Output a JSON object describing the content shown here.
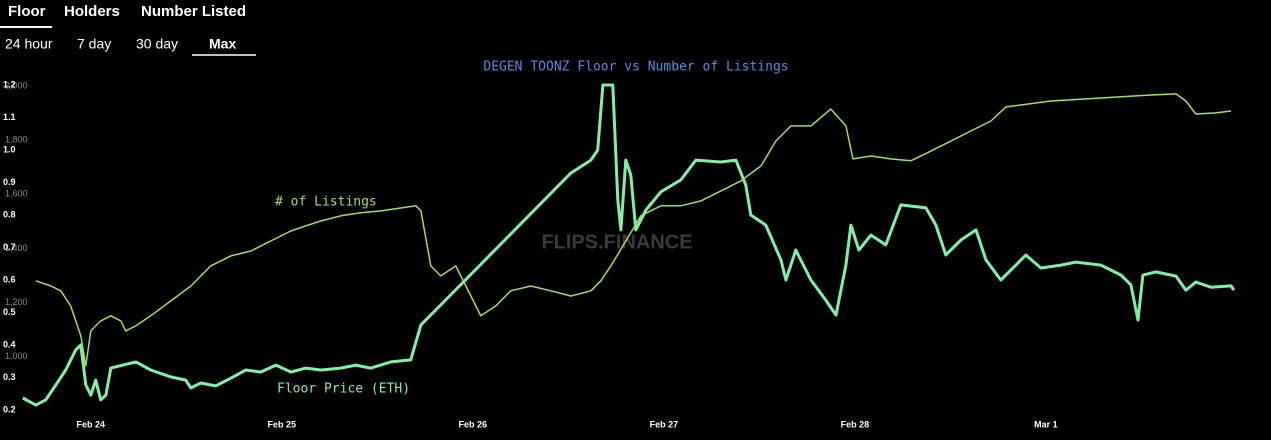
{
  "tabs": [
    "Floor",
    "Holders",
    "Number Listed"
  ],
  "ranges": [
    "24 hour",
    "7 day",
    "30 day",
    "Max"
  ],
  "chart_data": {
    "type": "line",
    "title": "DEGEN TOONZ Floor vs Number of Listings",
    "watermark": "FLIPS.FINANCE",
    "annotations": [
      "# of Listings",
      "Floor Price (ETH)"
    ],
    "xlim": [
      -0.36,
      5.99
    ],
    "xticks": [
      {
        "value": 0,
        "label": "Feb 24"
      },
      {
        "value": 1,
        "label": "Feb 25"
      },
      {
        "value": 2,
        "label": "Feb 26"
      },
      {
        "value": 3,
        "label": "Feb 27"
      },
      {
        "value": 4,
        "label": "Feb 28"
      },
      {
        "value": 5,
        "label": "Mar 1"
      }
    ],
    "ylim": [
      0.2,
      1.2
    ],
    "yticks": [
      0.2,
      0.3,
      0.4,
      0.5,
      0.6,
      0.7,
      0.8,
      0.9,
      {
        "value": 1,
        "label": "1.0"
      },
      1.1,
      1.2
    ],
    "y2lim": [
      800,
      2000
    ],
    "y2ticks": [
      {
        "value": 1000,
        "label": "1,000"
      },
      {
        "value": 1200,
        "label": "1,200"
      },
      {
        "value": 1400,
        "label": "1,400"
      },
      {
        "value": 1600,
        "label": "1,600"
      },
      {
        "value": 1800,
        "label": "1,800"
      },
      {
        "value": 2000,
        "label": "2,000"
      }
    ],
    "series": [
      {
        "name": "Floor Price (ETH)",
        "color": "#7ff0a6",
        "width": 3,
        "x": [
          -0.356,
          -0.288,
          -0.236,
          -0.183,
          -0.131,
          -0.079,
          -0.052,
          -0.026,
          0,
          0.026,
          0.052,
          0.079,
          0.105,
          0.236,
          0.314,
          0.419,
          0.497,
          0.524,
          0.576,
          0.654,
          0.733,
          0.812,
          0.89,
          0.969,
          1.047,
          1.126,
          1.204,
          1.309,
          1.387,
          1.466,
          1.571,
          1.675,
          1.728,
          1.832,
          2.513,
          2.618,
          2.654,
          2.681,
          2.733,
          2.759,
          2.775,
          2.801,
          2.827,
          2.853,
          2.906,
          2.984,
          3.089,
          3.168,
          3.298,
          3.377,
          3.429,
          3.455,
          3.534,
          3.613,
          3.639,
          3.691,
          3.77,
          3.848,
          3.901,
          3.953,
          3.979,
          4.021,
          4.084,
          4.162,
          4.241,
          4.372,
          4.424,
          4.476,
          4.555,
          4.634,
          4.686,
          4.764,
          4.843,
          4.895,
          4.974,
          5.079,
          5.157,
          5.288,
          5.393,
          5.445,
          5.482,
          5.508,
          5.576,
          5.681,
          5.733,
          5.785,
          5.864,
          5.969,
          5.984
        ],
        "values": [
          0.237,
          0.215,
          0.231,
          0.277,
          0.323,
          0.385,
          0.4,
          0.277,
          0.246,
          0.292,
          0.231,
          0.246,
          0.329,
          0.348,
          0.323,
          0.302,
          0.292,
          0.268,
          0.283,
          0.274,
          0.298,
          0.323,
          0.317,
          0.338,
          0.317,
          0.329,
          0.323,
          0.329,
          0.338,
          0.329,
          0.348,
          0.354,
          0.462,
          0.523,
          0.929,
          0.969,
          1.0,
          1.2,
          1.2,
          0.846,
          0.754,
          0.969,
          0.923,
          0.754,
          0.815,
          0.871,
          0.908,
          0.969,
          0.963,
          0.969,
          0.892,
          0.8,
          0.769,
          0.662,
          0.6,
          0.692,
          0.6,
          0.538,
          0.492,
          0.646,
          0.769,
          0.692,
          0.738,
          0.708,
          0.831,
          0.822,
          0.769,
          0.677,
          0.723,
          0.754,
          0.662,
          0.6,
          0.646,
          0.677,
          0.637,
          0.646,
          0.655,
          0.646,
          0.615,
          0.585,
          0.477,
          0.615,
          0.625,
          0.612,
          0.569,
          0.594,
          0.578,
          0.582,
          0.569
        ]
      },
      {
        "name": "# of Listings",
        "color": "#9ee05a",
        "width": 1.5,
        "axis": "y2",
        "x": [
          -0.288,
          -0.209,
          -0.157,
          -0.105,
          -0.052,
          -0.026,
          0,
          0.052,
          0.105,
          0.157,
          0.183,
          0.236,
          0.314,
          0.419,
          0.524,
          0.628,
          0.733,
          0.838,
          0.942,
          1.047,
          1.126,
          1.204,
          1.309,
          1.414,
          1.518,
          1.623,
          1.702,
          1.728,
          1.78,
          1.832,
          1.911,
          1.99,
          2.042,
          2.12,
          2.199,
          2.304,
          2.408,
          2.513,
          2.618,
          2.67,
          2.723,
          2.801,
          2.88,
          2.984,
          3.089,
          3.194,
          3.298,
          3.403,
          3.508,
          3.586,
          3.665,
          3.77,
          3.874,
          3.953,
          3.99,
          4.084,
          4.188,
          4.293,
          4.398,
          4.503,
          4.607,
          4.712,
          4.791,
          5.026,
          5.288,
          5.55,
          5.681,
          5.733,
          5.785,
          5.89,
          5.969
        ],
        "values": [
          1277,
          1258,
          1240,
          1184,
          1074,
          963,
          1092,
          1129,
          1148,
          1129,
          1092,
          1111,
          1148,
          1203,
          1258,
          1332,
          1369,
          1387,
          1424,
          1461,
          1480,
          1498,
          1517,
          1528,
          1535,
          1546,
          1554,
          1535,
          1332,
          1295,
          1332,
          1221,
          1148,
          1184,
          1240,
          1258,
          1240,
          1221,
          1240,
          1277,
          1332,
          1424,
          1517,
          1554,
          1554,
          1572,
          1609,
          1646,
          1701,
          1793,
          1849,
          1849,
          1911,
          1849,
          1727,
          1738,
          1727,
          1720,
          1756,
          1793,
          1830,
          1867,
          1919,
          1941,
          1952,
          1963,
          1967,
          1941,
          1893,
          1897,
          1904
        ]
      }
    ]
  }
}
